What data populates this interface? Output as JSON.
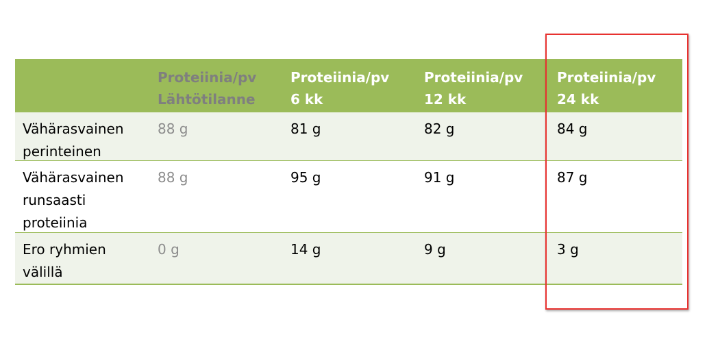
{
  "table": {
    "header": [
      {
        "line1": "",
        "line2": ""
      },
      {
        "line1": "Proteiinia/pv",
        "line2": "Lähtötilanne"
      },
      {
        "line1": "Proteiinia/pv",
        "line2": "6 kk"
      },
      {
        "line1": "Proteiinia/pv",
        "line2": "12 kk"
      },
      {
        "line1": "Proteiinia/pv",
        "line2": "24 kk"
      }
    ],
    "rows": [
      {
        "label": [
          "Vähärasvainen",
          "perinteinen"
        ],
        "values": [
          "88 g",
          "81 g",
          "82 g",
          "84 g"
        ]
      },
      {
        "label": [
          "Vähärasvainen",
          "runsaasti",
          "proteiinia"
        ],
        "values": [
          "88 g",
          "95 g",
          "91 g",
          "87 g"
        ]
      },
      {
        "label": [
          "Ero ryhmien",
          "välillä"
        ],
        "values": [
          "0 g",
          "14 g",
          "9 g",
          "3 g"
        ]
      }
    ]
  },
  "colors": {
    "header_bg": "#9bbb59",
    "shaded_row_bg": "#eff3ea",
    "baseline_text": "#8c8c8c",
    "highlight_border": "#e8312f"
  }
}
